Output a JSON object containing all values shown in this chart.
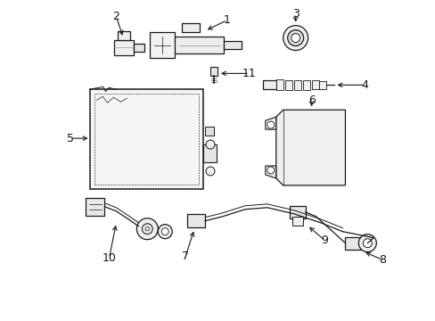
{
  "bg_color": "#ffffff",
  "line_color": "#1a1a1a",
  "text_color": "#111111",
  "fig_width": 4.89,
  "fig_height": 3.6,
  "dpi": 100
}
